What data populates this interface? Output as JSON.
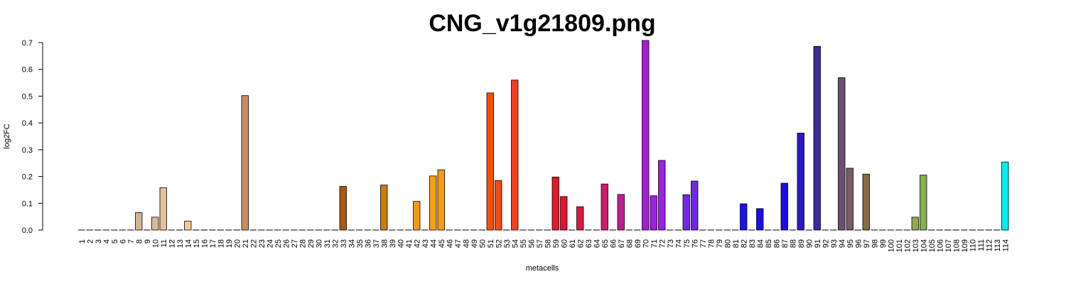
{
  "chart_data": {
    "type": "bar",
    "title": "CNG_v1g21809.png",
    "xlabel": "metacells",
    "ylabel": "log2FC",
    "ylim": [
      0,
      0.7
    ],
    "yticks": [
      "0.0",
      "0.1",
      "0.2",
      "0.3",
      "0.4",
      "0.5",
      "0.6",
      "0.7"
    ],
    "grid": false,
    "categories": [
      "1",
      "2",
      "3",
      "4",
      "5",
      "6",
      "7",
      "8",
      "9",
      "10",
      "11",
      "12",
      "13",
      "14",
      "15",
      "16",
      "17",
      "18",
      "19",
      "20",
      "21",
      "22",
      "23",
      "24",
      "25",
      "26",
      "27",
      "28",
      "29",
      "30",
      "31",
      "32",
      "33",
      "34",
      "35",
      "36",
      "37",
      "38",
      "39",
      "40",
      "41",
      "42",
      "43",
      "44",
      "45",
      "46",
      "47",
      "48",
      "49",
      "50",
      "51",
      "52",
      "53",
      "54",
      "55",
      "56",
      "57",
      "58",
      "59",
      "60",
      "61",
      "62",
      "63",
      "64",
      "65",
      "66",
      "67",
      "68",
      "69",
      "70",
      "71",
      "72",
      "73",
      "74",
      "75",
      "76",
      "77",
      "78",
      "79",
      "80",
      "81",
      "82",
      "83",
      "84",
      "85",
      "86",
      "87",
      "88",
      "89",
      "90",
      "91",
      "92",
      "93",
      "94",
      "95",
      "96",
      "97",
      "98",
      "99",
      "100",
      "101",
      "102",
      "103",
      "104",
      "105",
      "106",
      "107",
      "108",
      "109",
      "110",
      "111",
      "112",
      "113",
      "114"
    ],
    "values": [
      0,
      0,
      0,
      0,
      0,
      0,
      0,
      0.065,
      0,
      0.048,
      0.158,
      0,
      0,
      0.033,
      0,
      0,
      0,
      0,
      0,
      0,
      0.502,
      0,
      0,
      0,
      0,
      0,
      0,
      0,
      0,
      0,
      0,
      0,
      0.163,
      0,
      0,
      0,
      0,
      0.168,
      0,
      0,
      0,
      0.107,
      0,
      0.202,
      0.225,
      0,
      0,
      0,
      0,
      0,
      0.512,
      0.185,
      0,
      0.56,
      0,
      0,
      0,
      0,
      0.198,
      0.125,
      0,
      0.087,
      0,
      0,
      0.172,
      0,
      0.133,
      0,
      0,
      0.708,
      0.128,
      0.26,
      0,
      0,
      0.132,
      0.183,
      0,
      0,
      0,
      0,
      0,
      0.098,
      0,
      0.08,
      0,
      0,
      0.175,
      0,
      0.362,
      0,
      0.686,
      0,
      0,
      0.569,
      0.231,
      0,
      0.209,
      0,
      0,
      0,
      0,
      0,
      0.048,
      0.205,
      0,
      0,
      0,
      0,
      0,
      0,
      0,
      0,
      0,
      0.254
    ],
    "colors": [
      "#bfae95",
      "#bfae95",
      "#bfae95",
      "#c6ab8c",
      "#c6ab8c",
      "#c6ab8c",
      "#d4b48f",
      "#d3b690",
      "#d8b894",
      "#dcba97",
      "#e2c29d",
      "#e8c7a0",
      "#eec8a0",
      "#f5c98f",
      "#d8a26a",
      "#d09c66",
      "#cc985f",
      "#c99459",
      "#c79056",
      "#c48d58",
      "#c68e5d",
      "#c08050",
      "#b87845",
      "#b07040",
      "#a86a36",
      "#a2662f",
      "#a0622a",
      "#9e5e25",
      "#9c5a20",
      "#a05a1a",
      "#a45a16",
      "#a85a12",
      "#a85a12",
      "#b06010",
      "#b8680e",
      "#c0700c",
      "#c8780c",
      "#cd7a0e",
      "#d88210",
      "#e08a10",
      "#e89212",
      "#f09a14",
      "#f79f14",
      "#f9a015",
      "#fa9a14",
      "#fa8a12",
      "#fa7a10",
      "#fa6a0e",
      "#fa5a0c",
      "#fb520a",
      "#fc4e06",
      "#f84812",
      "#f6401a",
      "#f63d1e",
      "#f23a1e",
      "#ee341e",
      "#ea2e1e",
      "#e62a1e",
      "#e6182a",
      "#e61232",
      "#e2143c",
      "#e21644",
      "#da1850",
      "#d41a5e",
      "#cf1a6e",
      "#c81a80",
      "#c21c90",
      "#b81ea4",
      "#ae1ebc",
      "#a41ed4",
      "#9e20e0",
      "#9a22e6",
      "#8e22e8",
      "#7e24ea",
      "#7626ea",
      "#6e28e6",
      "#5e26e8",
      "#4c22ea",
      "#3c1eec",
      "#2c1aee",
      "#2414f0",
      "#2010f4",
      "#1e0cf6",
      "#1e0af8",
      "#1c0af6",
      "#1a0cf2",
      "#1a0ce8",
      "#2014dc",
      "#2a18cc",
      "#3220b8",
      "#3c2aa2",
      "#4a3290",
      "#56407e",
      "#6a5070",
      "#7a5c66",
      "#86625c",
      "#8a6a44",
      "#8e7a40",
      "#8e8440",
      "#8e9044",
      "#90a048",
      "#90aa4a",
      "#92a94c",
      "#88b050",
      "#7ab860",
      "#6cc070",
      "#5ec880",
      "#50d090",
      "#40d8a0",
      "#30e0b0",
      "#20e8c0",
      "#18f0d0",
      "#10f4e0",
      "#00f0f0"
    ]
  }
}
